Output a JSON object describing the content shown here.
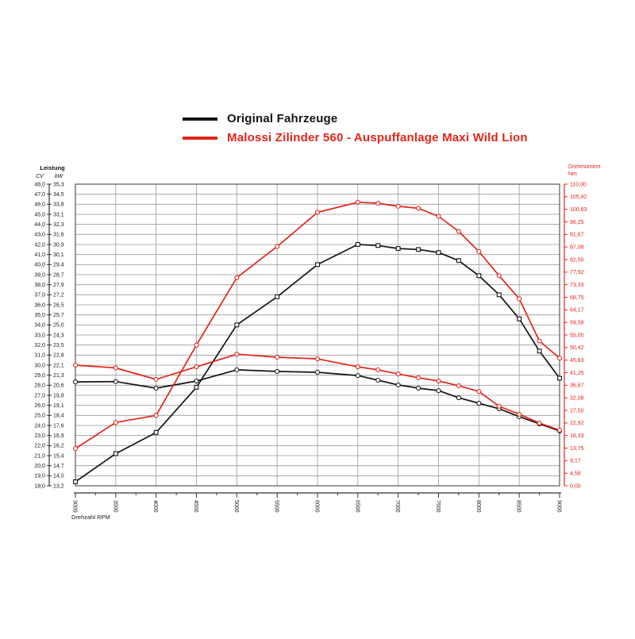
{
  "legend": {
    "items": [
      {
        "label": "Original Fahrzeuge",
        "color": "#141414"
      },
      {
        "label": "Malossi Zilinder 560 - Auspuffanlage Maxi Wild Lion",
        "color": "#e3251a"
      }
    ]
  },
  "chart_data": {
    "type": "line",
    "x_axis": {
      "label": "Drehzahl RPM",
      "tick_labels": [
        "3000",
        "3500",
        "4000",
        "4500",
        "5000",
        "5500",
        "6000",
        "6500",
        "7000",
        "7500",
        "8000",
        "8500",
        "9000"
      ],
      "range": [
        3000,
        9000
      ],
      "major_tick_step": 500,
      "minor_tick_step": 250
    },
    "left_axis": {
      "title": "Leistung",
      "columns": [
        "CV",
        "kW"
      ],
      "range_cv": [
        18,
        48
      ],
      "cv_labels": [
        "48,0",
        "47,0",
        "46,0",
        "45,0",
        "44,0",
        "43,0",
        "42,0",
        "41,0",
        "40,0",
        "39,0",
        "38,0",
        "37,0",
        "36,0",
        "35,0",
        "34,0",
        "33,0",
        "32,0",
        "31,0",
        "30,0",
        "29,0",
        "28,0",
        "27,0",
        "26,0",
        "25,0",
        "24,0",
        "23,0",
        "22,0",
        "21,0",
        "20,0",
        "19,0",
        "18,0"
      ],
      "kw_labels": [
        "35,3",
        "34,5",
        "33,8",
        "33,1",
        "32,3",
        "31,6",
        "30,9",
        "30,1",
        "29,4",
        "28,7",
        "27,9",
        "27,2",
        "26,5",
        "25,7",
        "25,0",
        "24,3",
        "23,5",
        "22,8",
        "22,1",
        "21,3",
        "20,6",
        "19,8",
        "19,1",
        "18,4",
        "17,6",
        "16,9",
        "16,2",
        "15,4",
        "14,7",
        "14,0",
        "13,2"
      ]
    },
    "right_axis": {
      "title": "Drehmoment",
      "unit": "Nm",
      "range": [
        0,
        110
      ],
      "labels": [
        "110,00",
        "105,42",
        "100,83",
        "96,25",
        "91,67",
        "87,08",
        "82,50",
        "77,92",
        "73,33",
        "68,75",
        "64,17",
        "59,58",
        "55,00",
        "50,42",
        "45,83",
        "41,25",
        "36,67",
        "32,08",
        "27,50",
        "22,92",
        "18,33",
        "13,75",
        "9,17",
        "4,58",
        "0,00"
      ]
    },
    "grid": true,
    "legend_position": "top",
    "rpm": [
      3000,
      3500,
      4000,
      4500,
      5000,
      5500,
      6000,
      6500,
      6750,
      7000,
      7250,
      7500,
      7750,
      8000,
      8250,
      8500,
      8750,
      9000
    ],
    "series": [
      {
        "name": "Original Fahrzeuge - Leistung",
        "axis": "cv",
        "color": "#141414",
        "marker": "square",
        "values": [
          18.4,
          21.2,
          23.3,
          27.8,
          34.0,
          36.8,
          40.0,
          42.0,
          41.9,
          41.6,
          41.5,
          41.2,
          40.4,
          38.9,
          37.0,
          34.6,
          31.4,
          28.7
        ]
      },
      {
        "name": "Original Fahrzeuge - Drehmoment",
        "axis": "nm",
        "color": "#141414",
        "marker": "circle",
        "values": [
          37.9,
          38.0,
          35.6,
          38.2,
          42.3,
          41.7,
          41.4,
          40.2,
          38.5,
          36.8,
          35.6,
          34.7,
          32.1,
          30.1,
          28.1,
          25.2,
          22.6,
          20.0
        ]
      },
      {
        "name": "Malossi Zilinder 560 - Leistung",
        "axis": "cv",
        "color": "#e3251a",
        "marker": "circle",
        "values": [
          21.7,
          24.3,
          25.0,
          32.0,
          38.7,
          41.8,
          45.2,
          46.2,
          46.1,
          45.8,
          45.6,
          44.8,
          43.3,
          41.3,
          38.9,
          36.6,
          32.4,
          30.7
        ]
      },
      {
        "name": "Malossi Zilinder 560 - Drehmoment",
        "axis": "nm",
        "color": "#e3251a",
        "marker": "circle",
        "values": [
          44.0,
          43.0,
          38.8,
          43.4,
          48.0,
          46.9,
          46.3,
          43.4,
          42.3,
          40.8,
          39.4,
          38.2,
          36.5,
          34.4,
          29.0,
          26.1,
          22.9,
          20.3
        ]
      }
    ]
  }
}
